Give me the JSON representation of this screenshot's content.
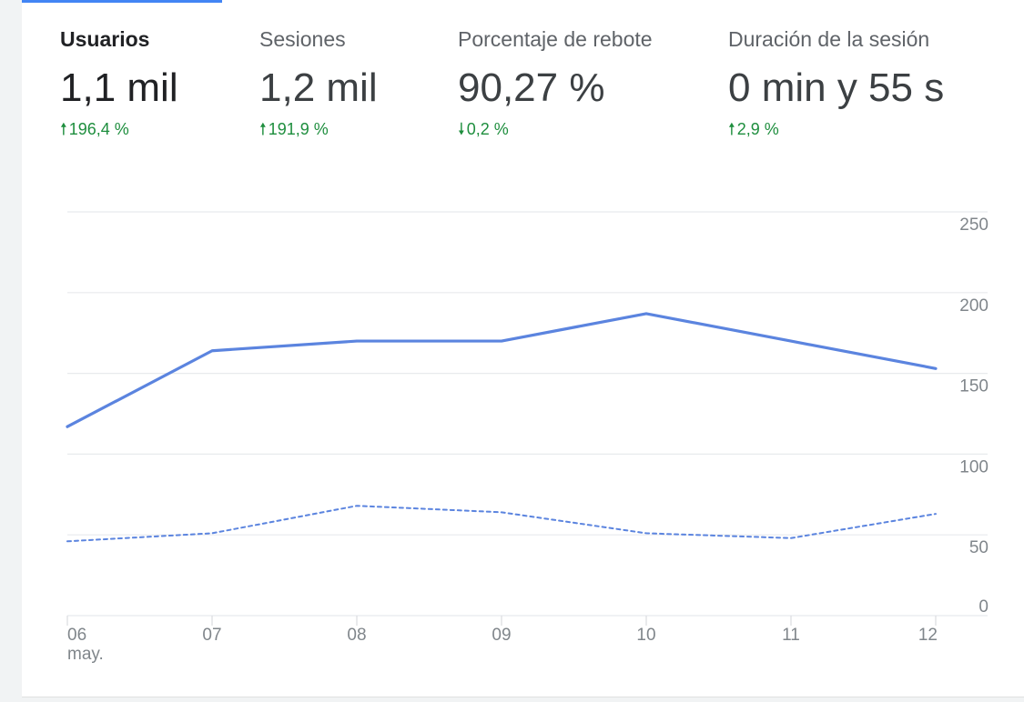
{
  "metrics": [
    {
      "label": "Usuarios",
      "value": "1,1 mil",
      "change": "196,4 %",
      "direction": "up",
      "active": true
    },
    {
      "label": "Sesiones",
      "value": "1,2 mil",
      "change": "191,9 %",
      "direction": "up",
      "active": false
    },
    {
      "label": "Porcentaje de rebote",
      "value": "90,27 %",
      "change": "0,2 %",
      "direction": "down",
      "active": false
    },
    {
      "label": "Duración de la sesión",
      "value": "0 min y 55 s",
      "change": "2,9 %",
      "direction": "up",
      "active": false
    }
  ],
  "colors": {
    "accent": "#4285f4",
    "line": "#5b84df",
    "positive": "#1e8e3e",
    "grid": "#e8eaed"
  },
  "chart_data": {
    "type": "line",
    "categories": [
      "06",
      "07",
      "08",
      "09",
      "10",
      "11",
      "12"
    ],
    "x_sublabels": [
      "may.",
      "",
      "",
      "",
      "",
      "",
      ""
    ],
    "y_ticks": [
      0,
      50,
      100,
      150,
      200,
      250
    ],
    "ylim": [
      0,
      250
    ],
    "grid": true,
    "series": [
      {
        "style": "solid",
        "values": [
          117,
          164,
          170,
          170,
          187,
          170,
          153
        ]
      },
      {
        "style": "dashed",
        "values": [
          46,
          51,
          68,
          64,
          51,
          48,
          63
        ]
      }
    ]
  }
}
